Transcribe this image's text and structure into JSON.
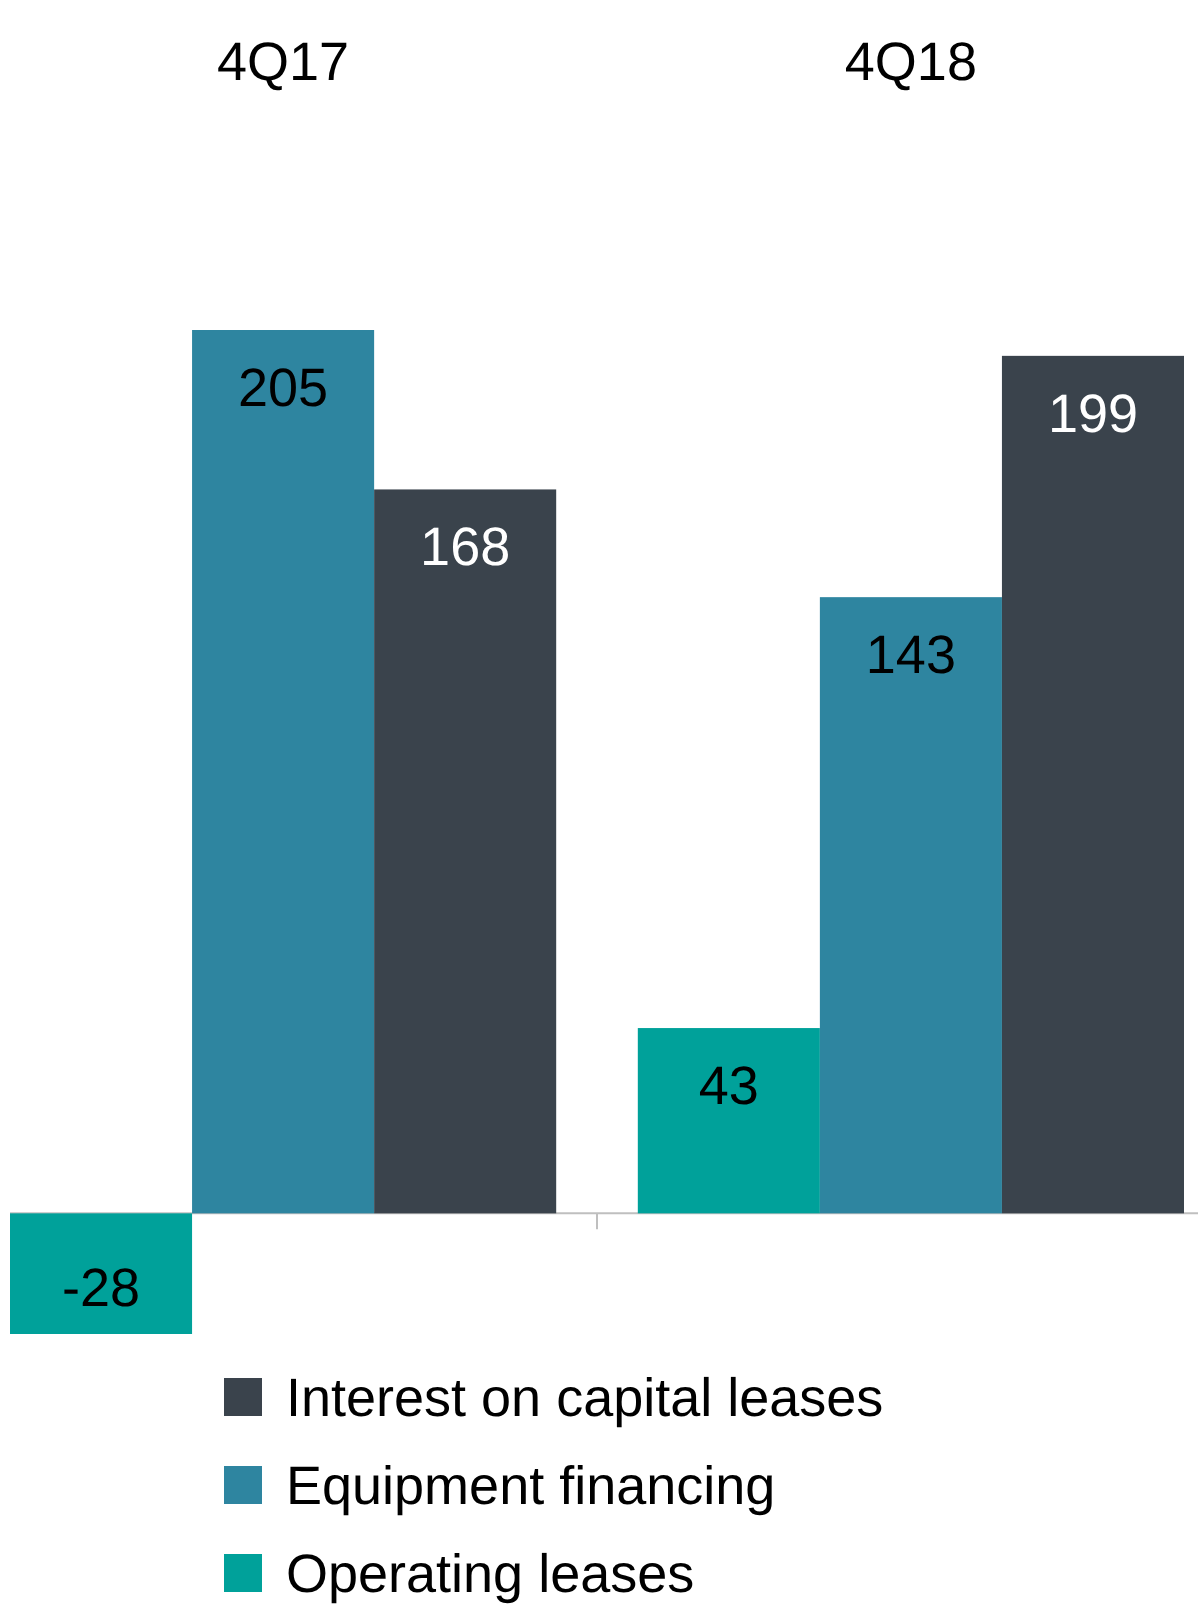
{
  "chart_data": {
    "type": "bar",
    "categories": [
      "4Q17",
      "4Q18"
    ],
    "series": [
      {
        "name": "Operating leases",
        "color": "#00a19a",
        "values": [
          -28,
          43
        ]
      },
      {
        "name": "Equipment financing",
        "color": "#2e85a0",
        "values": [
          205,
          143
        ]
      },
      {
        "name": "Interest on capital leases",
        "color": "#3a434c",
        "values": [
          168,
          199
        ]
      }
    ],
    "data_labels": true,
    "legend": "bottom"
  }
}
